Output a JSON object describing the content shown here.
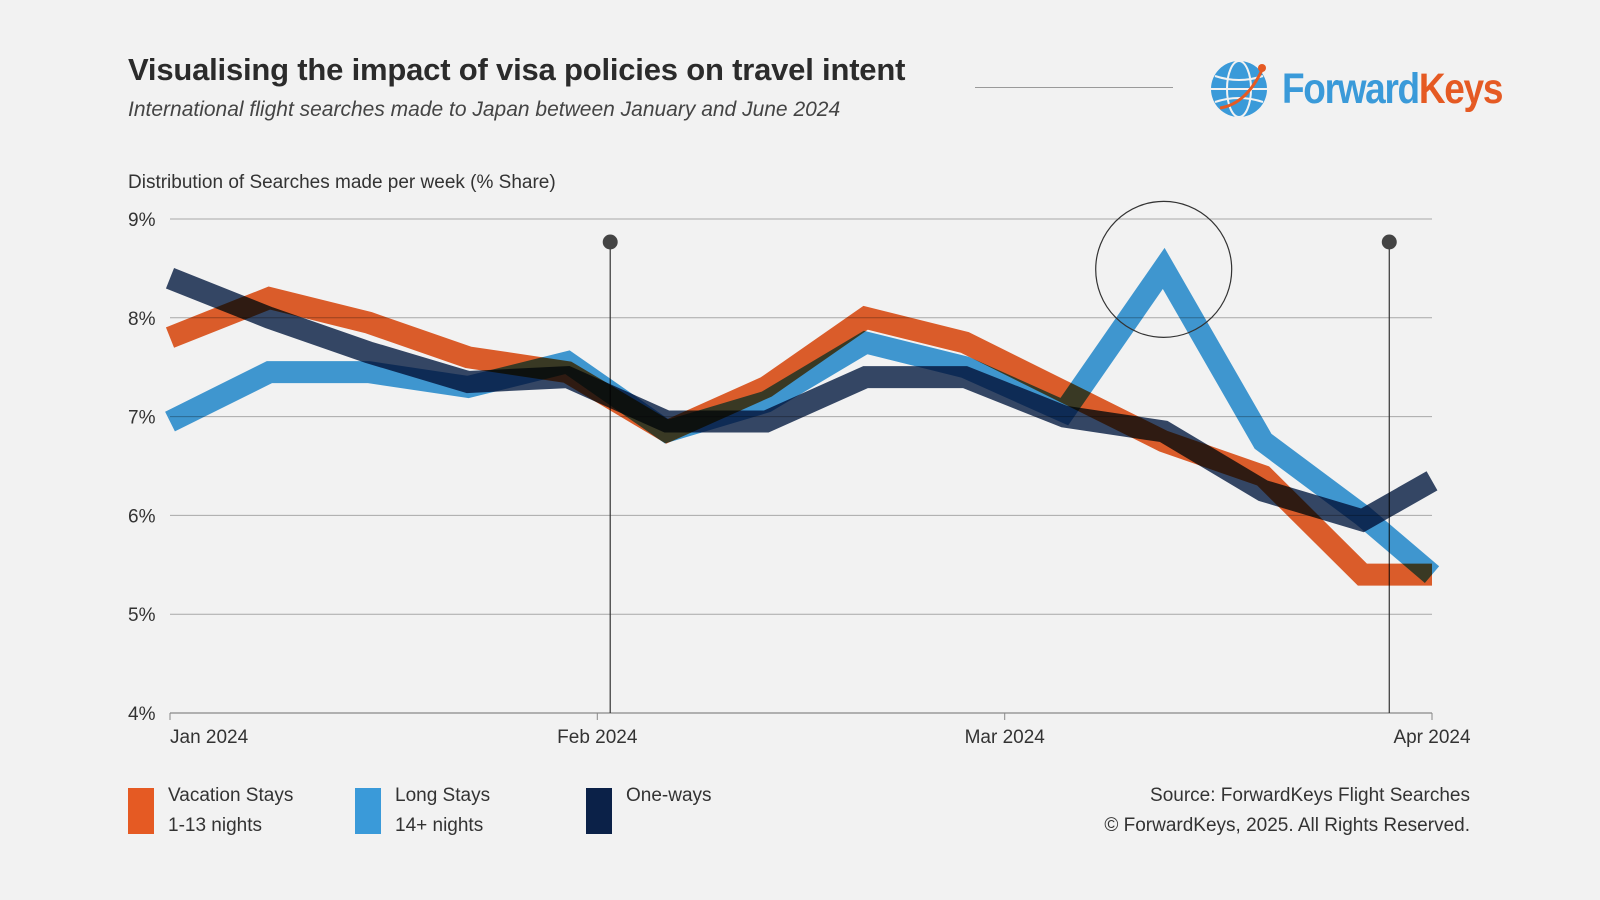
{
  "header": {
    "title": "Visualising the impact of visa policies on travel intent",
    "subtitle": "International flight searches made to Japan between January and June 2024"
  },
  "logo": {
    "text_forward": "Forward",
    "text_keys": "Keys",
    "icon": "globe-icon",
    "colors": {
      "forward": "#3a9ad9",
      "keys": "#e55a23"
    }
  },
  "chart_data": {
    "type": "line",
    "title": "Visualising the impact of visa policies on travel intent",
    "ylabel": "Distribution of Searches made per week (% Share)",
    "xlabel": "",
    "ylim": [
      4,
      9
    ],
    "y_ticks": [
      4,
      5,
      6,
      7,
      8,
      9
    ],
    "y_tick_labels": [
      "4%",
      "5%",
      "6%",
      "7%",
      "8%",
      "9%"
    ],
    "x_ticks": [
      {
        "week": 0,
        "label": "Jan 2024"
      },
      {
        "week": 4.3,
        "label": "Feb 2024"
      },
      {
        "week": 8.4,
        "label": "Mar 2024"
      },
      {
        "week": 12.7,
        "label": "Apr 2024"
      }
    ],
    "x_range": [
      0,
      12.7
    ],
    "grid": true,
    "weeks": [
      0,
      1,
      2,
      3,
      4,
      5,
      6,
      7,
      8,
      9,
      10,
      11,
      12,
      12.7
    ],
    "series": [
      {
        "name": "Vacation Stays",
        "color": "#e55a23",
        "values": [
          7.8,
          8.2,
          7.95,
          7.6,
          7.45,
          6.85,
          7.3,
          8.0,
          7.75,
          7.25,
          6.75,
          6.4,
          5.4,
          5.4
        ]
      },
      {
        "name": "Long Stays",
        "color": "#3a9ad9",
        "values": [
          6.95,
          7.45,
          7.45,
          7.3,
          7.55,
          6.85,
          7.15,
          7.75,
          7.5,
          7.05,
          8.5,
          6.75,
          6.0,
          5.4
        ]
      },
      {
        "name": "One-ways",
        "color": "#0b2148",
        "values": [
          8.4,
          8.0,
          7.65,
          7.35,
          7.4,
          6.95,
          6.95,
          7.4,
          7.4,
          7.0,
          6.85,
          6.25,
          5.95,
          6.35
        ]
      }
    ],
    "markers": [
      {
        "type": "vertical-line",
        "week": 4.43
      },
      {
        "type": "vertical-line",
        "week": 12.27
      },
      {
        "type": "highlight-circle",
        "week": 10,
        "value": 8.5
      }
    ],
    "legend_position": "bottom-left"
  },
  "legend": [
    {
      "label": "Vacation Stays",
      "sublabel": "1-13 nights",
      "color": "#e55a23"
    },
    {
      "label": "Long Stays",
      "sublabel": "14+ nights",
      "color": "#3a9ad9"
    },
    {
      "label": "One-ways",
      "sublabel": "",
      "color": "#0b2148"
    }
  ],
  "source": {
    "line1": "Source: ForwardKeys Flight Searches",
    "line2": "© ForwardKeys, 2025. All Rights Reserved."
  }
}
